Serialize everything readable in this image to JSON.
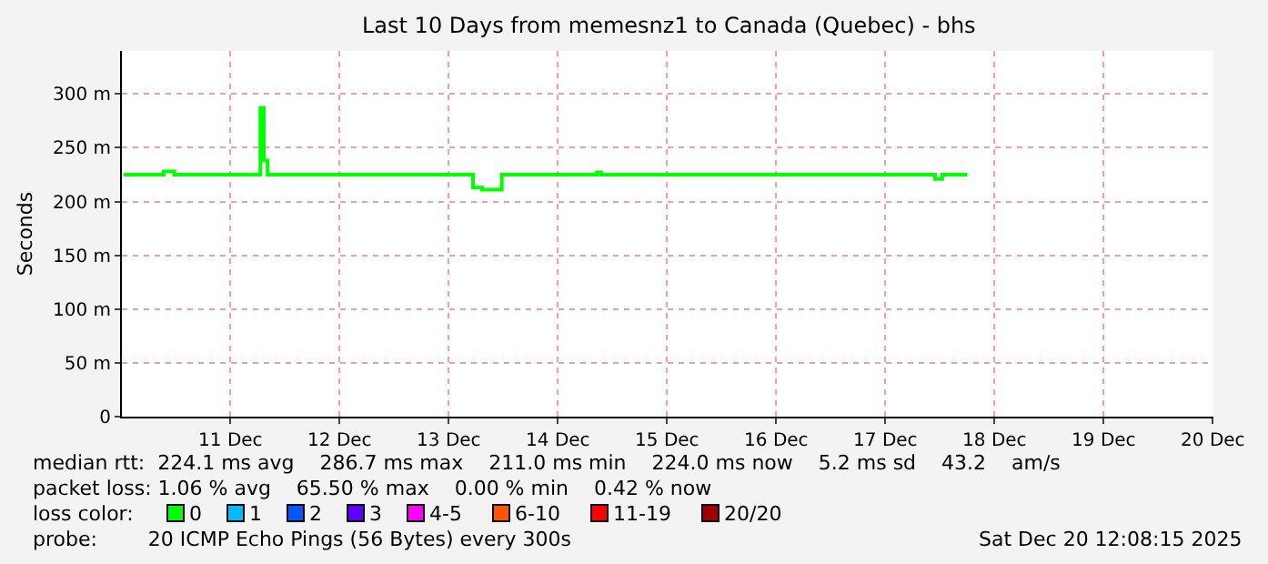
{
  "chart_data": {
    "type": "step",
    "title": "Last 10 Days from memesnz1 to Canada (Quebec) - bhs",
    "ylabel": "Seconds",
    "x": [
      "2025-12-10T12:30",
      "2025-12-10T20:00",
      "2025-12-10T21:20",
      "2025-12-10T23:40",
      "2025-12-11T18:00",
      "2025-12-11T18:35",
      "2025-12-11T19:20",
      "2025-12-11T20:10",
      "2025-12-13T17:20",
      "2025-12-13T19:20",
      "2025-12-13T23:10",
      "2025-12-13T23:40",
      "2025-12-14T20:00",
      "2025-12-14T20:35",
      "2025-12-14T21:30",
      "2025-12-17T22:30",
      "2025-12-17T22:56",
      "2025-12-18T00:30",
      "2025-12-18T06:00"
    ],
    "series": [
      {
        "name": "0",
        "color": "#00ff00",
        "values": [
          225,
          225,
          228,
          225,
          225,
          287,
          238,
          225,
          213,
          211,
          211,
          225,
          225,
          227,
          225,
          225,
          221,
          225,
          225
        ]
      },
      {
        "name": "1",
        "color": "#00bbff",
        "values": [
          null,
          null,
          null,
          null,
          null,
          null,
          null,
          null,
          null,
          null,
          null,
          null,
          null,
          null,
          null,
          null,
          null,
          null,
          null
        ]
      },
      {
        "name": "2",
        "color": "#0059ff",
        "values": [
          null,
          null,
          null,
          null,
          null,
          null,
          null,
          null,
          null,
          null,
          null,
          null,
          null,
          null,
          null,
          null,
          null,
          null,
          null
        ]
      },
      {
        "name": "3",
        "color": "#5e00ff",
        "values": [
          null,
          null,
          null,
          null,
          null,
          null,
          null,
          null,
          null,
          null,
          null,
          null,
          null,
          null,
          null,
          null,
          null,
          null,
          null
        ]
      },
      {
        "name": "4-5",
        "color": "#ff00ff",
        "values": [
          null,
          null,
          null,
          null,
          null,
          null,
          null,
          null,
          null,
          null,
          null,
          null,
          null,
          null,
          null,
          null,
          null,
          null,
          null
        ]
      },
      {
        "name": "6-10",
        "color": "#ff5500",
        "values": [
          null,
          null,
          null,
          null,
          null,
          null,
          null,
          null,
          null,
          null,
          null,
          null,
          null,
          null,
          null,
          null,
          null,
          null,
          null
        ]
      },
      {
        "name": "11-19",
        "color": "#ff0000",
        "values": [
          null,
          null,
          null,
          null,
          null,
          null,
          null,
          null,
          null,
          null,
          null,
          null,
          null,
          null,
          null,
          null,
          null,
          null,
          null
        ]
      },
      {
        "name": "20/20",
        "color": "#a10000",
        "values": [
          null,
          null,
          null,
          null,
          null,
          null,
          null,
          null,
          null,
          null,
          null,
          null,
          null,
          null,
          null,
          null,
          null,
          null,
          null
        ]
      }
    ],
    "xlim": [
      "2025-12-10T12:08",
      "2025-12-20T12:08"
    ],
    "xticks": [
      {
        "value": "2025-12-11T12:00",
        "label": "11 Dec"
      },
      {
        "value": "2025-12-12T12:00",
        "label": "12 Dec"
      },
      {
        "value": "2025-12-13T12:00",
        "label": "13 Dec"
      },
      {
        "value": "2025-12-14T12:00",
        "label": "14 Dec"
      },
      {
        "value": "2025-12-15T12:00",
        "label": "15 Dec"
      },
      {
        "value": "2025-12-16T12:00",
        "label": "16 Dec"
      },
      {
        "value": "2025-12-17T12:00",
        "label": "17 Dec"
      },
      {
        "value": "2025-12-18T12:00",
        "label": "18 Dec"
      },
      {
        "value": "2025-12-19T12:00",
        "label": "19 Dec"
      },
      {
        "value": "2025-12-20T12:00",
        "label": "20 Dec"
      }
    ],
    "ylim": [
      0,
      340
    ],
    "yticks": [
      0,
      {
        "value": 50,
        "label": "50 m"
      },
      {
        "value": 100,
        "label": "100 m"
      },
      {
        "value": 150,
        "label": "150 m"
      },
      {
        "value": 200,
        "label": "200 m"
      },
      {
        "value": 250,
        "label": "250 m"
      },
      {
        "value": 300,
        "label": "300 m"
      }
    ],
    "grid": true,
    "legend": "bottom",
    "marker": "none",
    "line_style": "solid",
    "annotations": [
      "median rtt:  224.1 ms avg    286.7 ms max    211.0 ms min    224.0 ms now    5.2 ms sd    43.2    am/s",
      "packet loss: 1.06 % avg    65.50 % max    0.00 % min    0.42 % now",
      "loss color:",
      "probe:        20 ICMP Echo Pings (56 Bytes) every 300s",
      "Sat Dec 20 12:08:15 2025"
    ]
  }
}
